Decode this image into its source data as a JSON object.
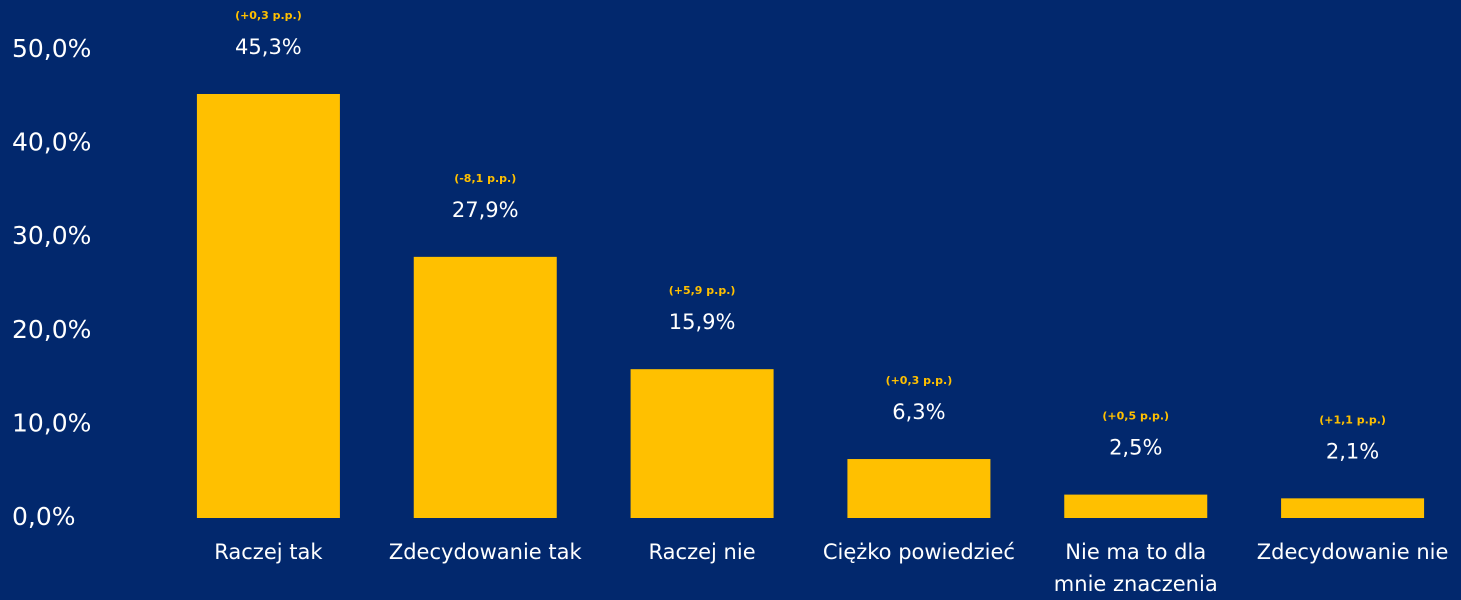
{
  "chart_data": {
    "type": "bar",
    "categories": [
      "Raczej tak",
      "Zdecydowanie tak",
      "Raczej nie",
      "Ciężko powiedzieć",
      "Nie ma to dla mnie znaczenia",
      "Zdecydowanie nie"
    ],
    "values": [
      45.3,
      27.9,
      15.9,
      6.3,
      2.5,
      2.1
    ],
    "value_labels": [
      "45,3%",
      "27,9%",
      "15,9%",
      "6,3%",
      "2,5%",
      "2,1%"
    ],
    "annotations": [
      "(+0,3 p.p.)",
      "(-8,1 p.p.)",
      "(+5,9 p.p.)",
      "(+0,3 p.p.)",
      "(+0,5 p.p.)",
      "(+1,1 p.p.)"
    ],
    "color": "#ffc000",
    "ylim": [
      0,
      50
    ],
    "yticks": [
      {
        "value": 0,
        "label": "0,0%"
      },
      {
        "value": 10,
        "label": "10,0%"
      },
      {
        "value": 20,
        "label": "20,0%"
      },
      {
        "value": 30,
        "label": "30,0%"
      },
      {
        "value": 40,
        "label": "40,0%"
      },
      {
        "value": 50,
        "label": "50,0%"
      }
    ],
    "grid": false
  }
}
